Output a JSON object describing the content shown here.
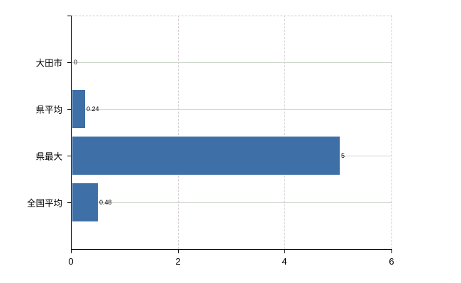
{
  "chart_data": {
    "type": "bar",
    "orientation": "horizontal",
    "title": "",
    "xlabel": "",
    "ylabel": "",
    "categories": [
      "大田市",
      "県平均",
      "県最大",
      "全国平均"
    ],
    "values": [
      0,
      0.24,
      5,
      0.48
    ],
    "value_labels": [
      "0",
      "0.24",
      "5",
      "0.48"
    ],
    "xlim": [
      0,
      6
    ],
    "xticks": [
      0,
      2,
      4,
      6
    ],
    "xtick_labels": [
      "0",
      "2",
      "4",
      "6"
    ],
    "grid": true,
    "legend": false,
    "colors": {
      "bar": "#3e6fa6",
      "axis": "#000000",
      "h_gridline": "#ccd5cc",
      "v_gridline": "#d3cbd3",
      "top_border": "#cfc7cf",
      "background": "#ffffff",
      "text": "#000000"
    }
  }
}
